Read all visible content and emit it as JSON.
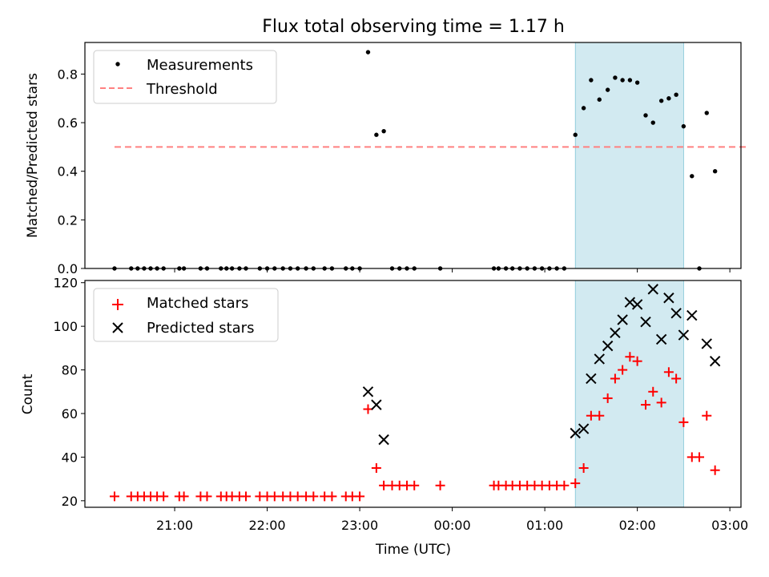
{
  "title": "Flux total observing time = 1.17 h",
  "xlabel": "Time (UTC)",
  "x_tick_labels": [
    "21:00",
    "22:00",
    "23:00",
    "00:00",
    "01:00",
    "02:00",
    "03:00"
  ],
  "x_tick_hours": [
    21,
    22,
    23,
    24,
    25,
    26,
    27
  ],
  "xlim_hours": [
    20.03,
    27.12
  ],
  "shaded_interval_hours": [
    25.33,
    26.5
  ],
  "colors": {
    "shade": "#add8e6",
    "threshold": "#ff8080",
    "matched": "#ff0000",
    "predicted": "#000000",
    "measurement": "#000000"
  },
  "chart_data": [
    {
      "type": "scatter",
      "ylabel": "Matched/Predicted stars",
      "ylim": [
        0,
        0.93
      ],
      "y_ticks": [
        0.0,
        0.2,
        0.4,
        0.6,
        0.8
      ],
      "y_tick_labels": [
        "0.0",
        "0.2",
        "0.4",
        "0.6",
        "0.8"
      ],
      "legend": {
        "placement": "top-left",
        "entries": [
          "Measurements",
          "Threshold"
        ]
      },
      "threshold": {
        "name": "Threshold",
        "value": 0.5,
        "x_range_hours": [
          20.35,
          27.2
        ]
      },
      "series": [
        {
          "name": "Measurements",
          "points": [
            [
              20.35,
              0
            ],
            [
              20.53,
              0
            ],
            [
              20.6,
              0
            ],
            [
              20.67,
              0
            ],
            [
              20.74,
              0
            ],
            [
              20.81,
              0
            ],
            [
              20.88,
              0
            ],
            [
              21.05,
              0
            ],
            [
              21.1,
              0
            ],
            [
              21.28,
              0
            ],
            [
              21.35,
              0
            ],
            [
              21.5,
              0
            ],
            [
              21.56,
              0
            ],
            [
              21.62,
              0
            ],
            [
              21.7,
              0
            ],
            [
              21.77,
              0
            ],
            [
              21.92,
              0
            ],
            [
              22.0,
              0
            ],
            [
              22.08,
              0
            ],
            [
              22.17,
              0
            ],
            [
              22.25,
              0
            ],
            [
              22.33,
              0
            ],
            [
              22.42,
              0
            ],
            [
              22.5,
              0
            ],
            [
              22.62,
              0
            ],
            [
              22.7,
              0
            ],
            [
              22.85,
              0
            ],
            [
              22.92,
              0
            ],
            [
              23.0,
              0
            ],
            [
              23.09,
              0.89
            ],
            [
              23.18,
              0.55
            ],
            [
              23.26,
              0.565
            ],
            [
              23.35,
              0
            ],
            [
              23.43,
              0
            ],
            [
              23.51,
              0
            ],
            [
              23.59,
              0
            ],
            [
              23.87,
              0
            ],
            [
              24.45,
              0
            ],
            [
              24.5,
              0
            ],
            [
              24.58,
              0
            ],
            [
              24.65,
              0
            ],
            [
              24.73,
              0
            ],
            [
              24.81,
              0
            ],
            [
              24.89,
              0
            ],
            [
              24.97,
              0
            ],
            [
              25.05,
              0
            ],
            [
              25.13,
              0
            ],
            [
              25.21,
              0
            ],
            [
              25.33,
              0.55
            ],
            [
              25.42,
              0.66
            ],
            [
              25.5,
              0.775
            ],
            [
              25.59,
              0.695
            ],
            [
              25.68,
              0.735
            ],
            [
              25.76,
              0.785
            ],
            [
              25.84,
              0.775
            ],
            [
              25.92,
              0.775
            ],
            [
              26.0,
              0.765
            ],
            [
              26.09,
              0.63
            ],
            [
              26.17,
              0.6
            ],
            [
              26.26,
              0.69
            ],
            [
              26.34,
              0.7
            ],
            [
              26.42,
              0.715
            ],
            [
              26.5,
              0.585
            ],
            [
              26.59,
              0.38
            ],
            [
              26.67,
              0
            ],
            [
              26.75,
              0.64
            ],
            [
              26.84,
              0.4
            ]
          ]
        }
      ]
    },
    {
      "type": "scatter",
      "ylabel": "Count",
      "ylim": [
        17,
        121
      ],
      "y_ticks": [
        20,
        40,
        60,
        80,
        100,
        120
      ],
      "y_tick_labels": [
        "20",
        "40",
        "60",
        "80",
        "100",
        "120"
      ],
      "legend": {
        "placement": "top-left",
        "entries": [
          "Matched stars",
          "Predicted stars"
        ]
      },
      "series": [
        {
          "name": "Matched stars",
          "marker": "plus",
          "points": [
            [
              20.35,
              22
            ],
            [
              20.53,
              22
            ],
            [
              20.6,
              22
            ],
            [
              20.67,
              22
            ],
            [
              20.74,
              22
            ],
            [
              20.81,
              22
            ],
            [
              20.88,
              22
            ],
            [
              21.05,
              22
            ],
            [
              21.1,
              22
            ],
            [
              21.28,
              22
            ],
            [
              21.35,
              22
            ],
            [
              21.5,
              22
            ],
            [
              21.56,
              22
            ],
            [
              21.62,
              22
            ],
            [
              21.7,
              22
            ],
            [
              21.77,
              22
            ],
            [
              21.92,
              22
            ],
            [
              22.0,
              22
            ],
            [
              22.08,
              22
            ],
            [
              22.17,
              22
            ],
            [
              22.25,
              22
            ],
            [
              22.33,
              22
            ],
            [
              22.42,
              22
            ],
            [
              22.5,
              22
            ],
            [
              22.62,
              22
            ],
            [
              22.7,
              22
            ],
            [
              22.85,
              22
            ],
            [
              22.92,
              22
            ],
            [
              23.0,
              22
            ],
            [
              23.09,
              62
            ],
            [
              23.18,
              35
            ],
            [
              23.26,
              27
            ],
            [
              23.35,
              27
            ],
            [
              23.43,
              27
            ],
            [
              23.51,
              27
            ],
            [
              23.59,
              27
            ],
            [
              23.87,
              27
            ],
            [
              24.45,
              27
            ],
            [
              24.5,
              27
            ],
            [
              24.58,
              27
            ],
            [
              24.65,
              27
            ],
            [
              24.73,
              27
            ],
            [
              24.81,
              27
            ],
            [
              24.89,
              27
            ],
            [
              24.97,
              27
            ],
            [
              25.05,
              27
            ],
            [
              25.13,
              27
            ],
            [
              25.21,
              27
            ],
            [
              25.33,
              28
            ],
            [
              25.42,
              35
            ],
            [
              25.5,
              59
            ],
            [
              25.59,
              59
            ],
            [
              25.68,
              67
            ],
            [
              25.76,
              76
            ],
            [
              25.84,
              80
            ],
            [
              25.92,
              86
            ],
            [
              26.0,
              84
            ],
            [
              26.09,
              64
            ],
            [
              26.17,
              70
            ],
            [
              26.26,
              65
            ],
            [
              26.34,
              79
            ],
            [
              26.42,
              76
            ],
            [
              26.5,
              56
            ],
            [
              26.59,
              40
            ],
            [
              26.67,
              40
            ],
            [
              26.75,
              59
            ],
            [
              26.84,
              34
            ]
          ]
        },
        {
          "name": "Predicted stars",
          "marker": "x",
          "points": [
            [
              23.09,
              70
            ],
            [
              23.18,
              64
            ],
            [
              23.26,
              48
            ],
            [
              25.33,
              51
            ],
            [
              25.42,
              53
            ],
            [
              25.5,
              76
            ],
            [
              25.59,
              85
            ],
            [
              25.68,
              91
            ],
            [
              25.76,
              97
            ],
            [
              25.84,
              103
            ],
            [
              25.92,
              111
            ],
            [
              26.0,
              110
            ],
            [
              26.09,
              102
            ],
            [
              26.17,
              117
            ],
            [
              26.26,
              94
            ],
            [
              26.34,
              113
            ],
            [
              26.42,
              106
            ],
            [
              26.5,
              96
            ],
            [
              26.59,
              105
            ],
            [
              26.75,
              92
            ],
            [
              26.84,
              84
            ]
          ]
        }
      ]
    }
  ]
}
